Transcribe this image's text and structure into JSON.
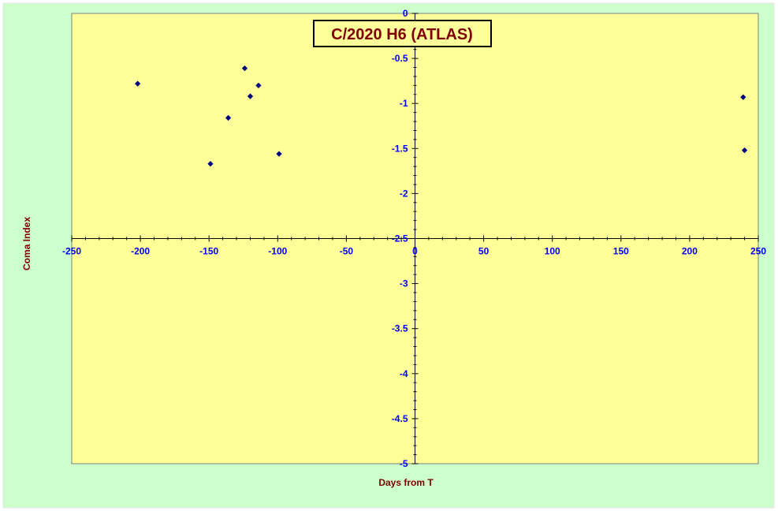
{
  "colors": {
    "page_background": "#ccffcc",
    "plot_background": "#ffff99",
    "axis_line": "#000000",
    "tick_label": "#0000ff",
    "axis_title": "#800000",
    "title_text": "#800000",
    "title_box_fill": "#ffff99",
    "marker_fill": "#000080"
  },
  "chart_data": {
    "type": "scatter",
    "title": "C/2020 H6 (ATLAS)",
    "xlabel": "Days from T",
    "ylabel": "Coma Index",
    "xlim": [
      -250,
      250
    ],
    "ylim": [
      -5,
      0
    ],
    "x_tick_labels": [
      "-250",
      "-200",
      "-150",
      "-100",
      "-50",
      "0",
      "50",
      "100",
      "150",
      "200",
      "250"
    ],
    "y_tick_labels": [
      "0",
      "-0.5",
      "-1",
      "-1.5",
      "-2",
      "-2.5",
      "-3",
      "-3.5",
      "-4",
      "-4.5",
      "-5"
    ],
    "grid": false,
    "legend": "none",
    "marker": "diamond",
    "series": [
      {
        "points": [
          {
            "x": -202,
            "y": -0.78
          },
          {
            "x": -149,
            "y": -1.67
          },
          {
            "x": -136,
            "y": -1.16
          },
          {
            "x": -124,
            "y": -0.61
          },
          {
            "x": -120,
            "y": -0.92
          },
          {
            "x": -114,
            "y": -0.8
          },
          {
            "x": -99,
            "y": -1.56
          },
          {
            "x": 239,
            "y": -0.93
          },
          {
            "x": 240,
            "y": -1.52
          }
        ]
      }
    ]
  }
}
